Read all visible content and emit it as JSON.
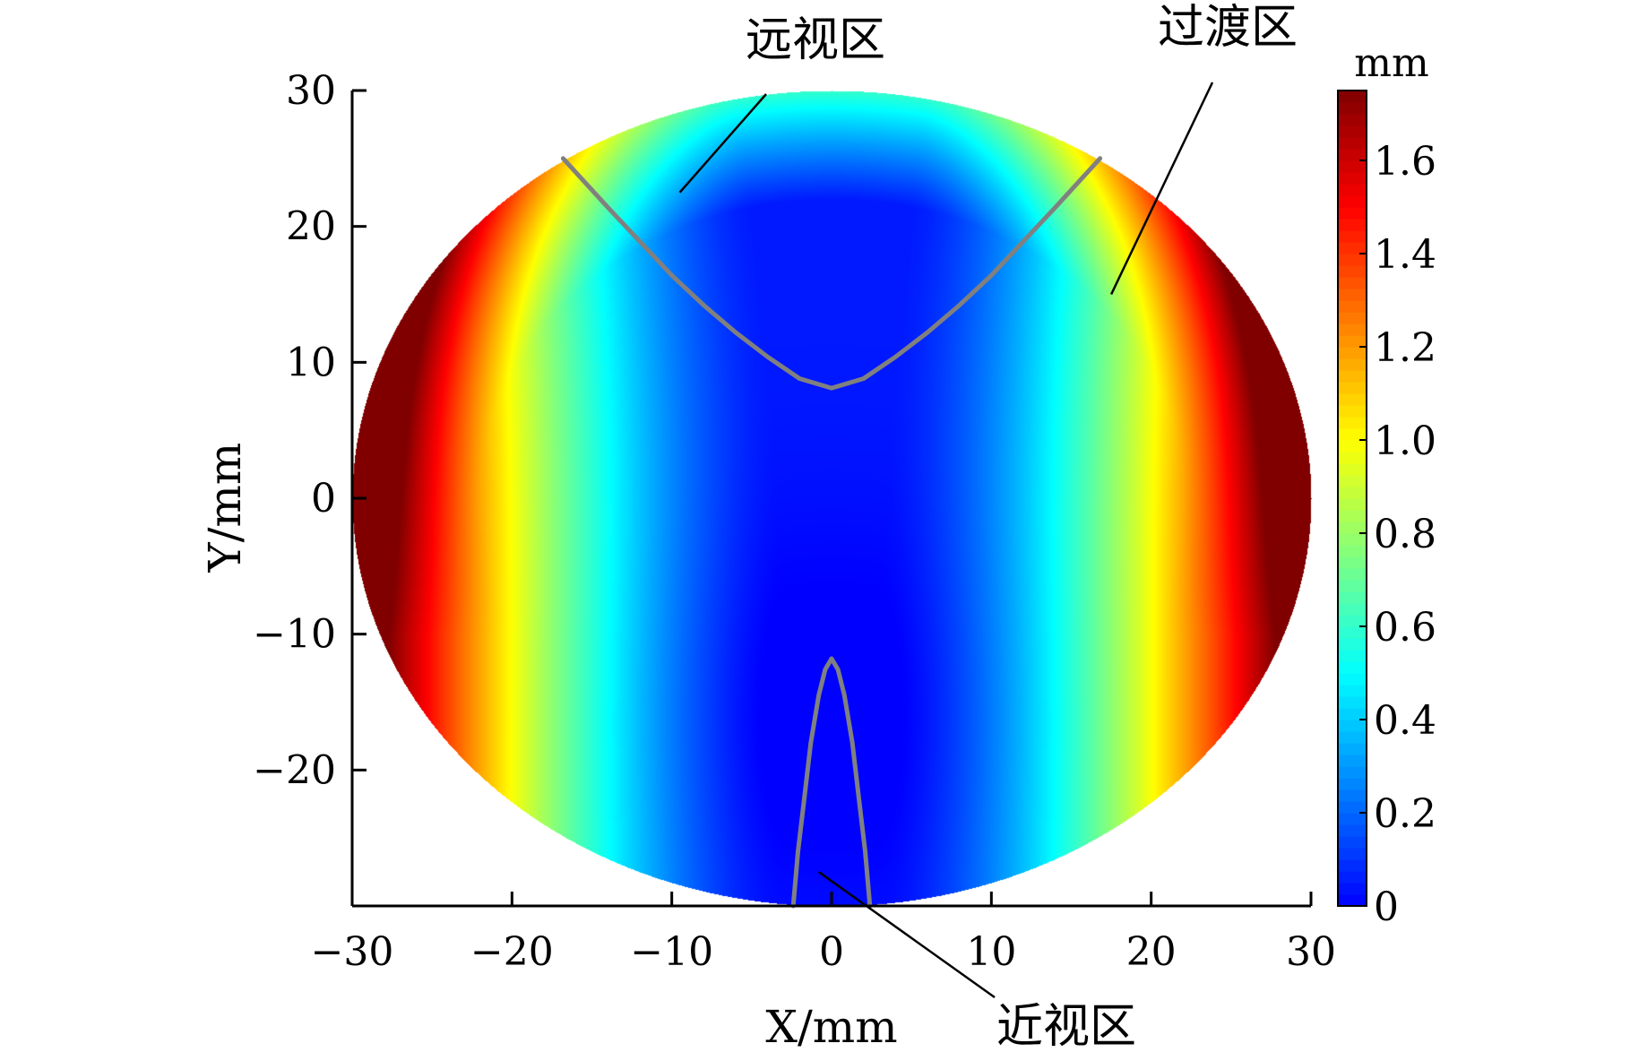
{
  "chart_data": {
    "type": "heatmap",
    "description_hidden": "",
    "xlabel": "X/mm",
    "ylabel": "Y/mm",
    "xlim": [
      -30,
      30
    ],
    "ylim": [
      -30,
      30
    ],
    "x_ticks": [
      -30,
      -20,
      -10,
      0,
      10,
      20,
      30
    ],
    "y_ticks": [
      -20,
      -10,
      0,
      10,
      20,
      30
    ],
    "x_tick_labels": [
      "−30",
      "−20",
      "−10",
      "0",
      "10",
      "20",
      "30"
    ],
    "y_tick_labels": [
      "−20",
      "−10",
      "0",
      "10",
      "20",
      "30"
    ],
    "grid": false,
    "domain": {
      "shape": "circle",
      "center": [
        0,
        0
      ],
      "radius": 30
    },
    "value_range": [
      0,
      1.75
    ],
    "colorbar": {
      "unit": "mm",
      "ticks": [
        0,
        0.2,
        0.4,
        0.6,
        0.8,
        1.0,
        1.2,
        1.4,
        1.6
      ],
      "tick_labels": [
        "0",
        "0.2",
        "0.4",
        "0.6",
        "0.8",
        "1.0",
        "1.2",
        "1.4",
        "1.6"
      ],
      "colormap": "jet",
      "colors": [
        "#00008f",
        "#0000ff",
        "#00ffff",
        "#ffff00",
        "#ff0000",
        "#800000"
      ],
      "placement": "right"
    },
    "boundary_curves": [
      {
        "id": "far-zone-boundary",
        "color": "#808080",
        "points": [
          [
            -16.8,
            25
          ],
          [
            -14,
            21.4
          ],
          [
            -12,
            18.9
          ],
          [
            -10,
            16.4
          ],
          [
            -8,
            14.2
          ],
          [
            -6,
            12.2
          ],
          [
            -4,
            10.4
          ],
          [
            -2,
            8.8
          ],
          [
            0,
            8.1
          ],
          [
            2,
            8.8
          ],
          [
            4,
            10.4
          ],
          [
            6,
            12.2
          ],
          [
            8,
            14.2
          ],
          [
            10,
            16.4
          ],
          [
            12,
            18.9
          ],
          [
            14,
            21.4
          ],
          [
            16.8,
            25
          ]
        ]
      },
      {
        "id": "near-zone-boundary",
        "color": "#808080",
        "points": [
          [
            -2.4,
            -30
          ],
          [
            -2.1,
            -26
          ],
          [
            -1.7,
            -22
          ],
          [
            -1.3,
            -18
          ],
          [
            -0.8,
            -14.5
          ],
          [
            -0.4,
            -12.6
          ],
          [
            0,
            -11.8
          ],
          [
            0.4,
            -12.6
          ],
          [
            0.8,
            -14.5
          ],
          [
            1.3,
            -18
          ],
          [
            1.7,
            -22
          ],
          [
            2.1,
            -26
          ],
          [
            2.4,
            -30
          ]
        ]
      }
    ],
    "region_labels": [
      {
        "text": "远视区",
        "target": [
          -9.5,
          22.5
        ]
      },
      {
        "text": "过渡区",
        "target": [
          17.5,
          15
        ]
      },
      {
        "text": "近视区",
        "target": [
          -0.8,
          -27.5
        ]
      }
    ]
  }
}
